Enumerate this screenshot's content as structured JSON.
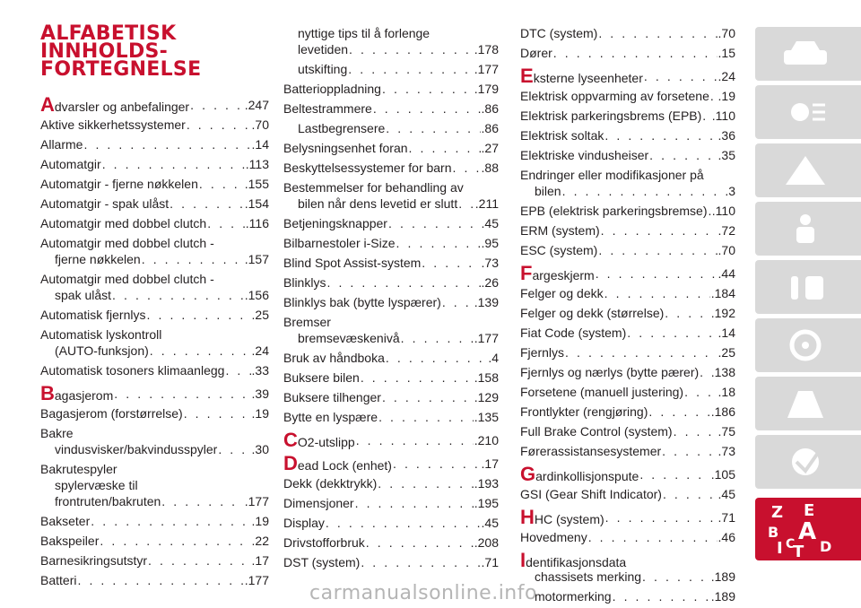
{
  "title": [
    "ALFABETISK",
    "INNHOLDS-",
    "FORTEGNELSE"
  ],
  "col1": [
    {
      "t": "Advarsler og anbefalinger",
      "p": ".247",
      "first": true
    },
    {
      "t": "Aktive sikkerhetssystemer",
      "p": ".70"
    },
    {
      "t": "Allarme",
      "p": ".14"
    },
    {
      "t": "Automatgir",
      "p": ".113"
    },
    {
      "t": "Automatgir - fjerne nøkkelen",
      "p": ".155"
    },
    {
      "t": "Automatgir - spak ulåst",
      "p": ".154"
    },
    {
      "t": "Automatgir med dobbel clutch",
      "p": ".116"
    },
    {
      "t": "Automatgir med dobbel clutch -",
      "plain": true
    },
    {
      "t": "fjerne nøkkelen",
      "p": ".157",
      "sub": true
    },
    {
      "t": "Automatgir med dobbel clutch -",
      "plain": true
    },
    {
      "t": "spak ulåst",
      "p": ".156",
      "sub": true
    },
    {
      "t": "Automatisk fjernlys",
      "p": ".25"
    },
    {
      "t": "Automatisk lyskontroll",
      "plain": true
    },
    {
      "t": "(AUTO-funksjon)",
      "p": ".24",
      "sub": true
    },
    {
      "t": "Automatisk tosoners klimaanlegg",
      "p": ".33"
    },
    {
      "t": "Bagasjerom",
      "p": ".39",
      "first": true
    },
    {
      "t": "Bagasjerom (forstørrelse)",
      "p": ".19"
    },
    {
      "t": "Bakre",
      "plain": true
    },
    {
      "t": "vindusvisker/bakvindusspyler",
      "p": ".30",
      "sub": true
    },
    {
      "t": "Bakrutespyler",
      "plain": true
    },
    {
      "t": "spylervæske til",
      "plain": true,
      "sub": true
    },
    {
      "t": "frontruten/bakruten",
      "p": ".177",
      "sub": true
    },
    {
      "t": "Bakseter",
      "p": ".19"
    },
    {
      "t": "Bakspeiler",
      "p": ".22"
    },
    {
      "t": "Barnesikringsutstyr",
      "p": ".17"
    },
    {
      "t": "Batteri",
      "p": ".177"
    }
  ],
  "col2": [
    {
      "t": "nyttige tips til å forlenge",
      "plain": true,
      "sub": true
    },
    {
      "t": "levetiden",
      "p": ".178",
      "sub": true
    },
    {
      "t": "utskifting",
      "p": ".177",
      "sub": true
    },
    {
      "t": "Batterioppladning",
      "p": ".179"
    },
    {
      "t": "Beltestrammere",
      "p": ".86"
    },
    {
      "t": "Lastbegrensere",
      "p": ".86",
      "sub": true
    },
    {
      "t": "Belysningsenhet foran",
      "p": ".27"
    },
    {
      "t": "Beskyttelsessystemer for barn",
      "p": ".88"
    },
    {
      "t": "Bestemmelser for behandling av",
      "plain": true
    },
    {
      "t": "bilen når dens levetid er slutt",
      "p": ".211",
      "sub": true
    },
    {
      "t": "Betjeningsknapper",
      "p": ".45"
    },
    {
      "t": "Bilbarnestoler i-Size",
      "p": ".95"
    },
    {
      "t": "Blind Spot Assist-system",
      "p": ".73"
    },
    {
      "t": "Blinklys",
      "p": ".26"
    },
    {
      "t": "Blinklys bak (bytte lyspærer)",
      "p": ".139"
    },
    {
      "t": "Bremser",
      "plain": true
    },
    {
      "t": "bremsevæskenivå",
      "p": ".177",
      "sub": true
    },
    {
      "t": "Bruk av håndboka",
      "p": ".4"
    },
    {
      "t": "Buksere bilen",
      "p": ".158"
    },
    {
      "t": "Buksere tilhenger",
      "p": ".129"
    },
    {
      "t": "Bytte en lyspære",
      "p": ".135"
    },
    {
      "t": "CO2-utslipp",
      "p": ".210",
      "first": true
    },
    {
      "t": "Dead Lock (enhet)",
      "p": ".17",
      "first": true
    },
    {
      "t": "Dekk (dekktrykk)",
      "p": ".193"
    },
    {
      "t": "Dimensjoner",
      "p": ".195"
    },
    {
      "t": "Display",
      "p": ".45"
    },
    {
      "t": "Drivstofforbruk",
      "p": ".208"
    },
    {
      "t": "DST (system)",
      "p": ".71"
    }
  ],
  "col3": [
    {
      "t": "DTC (system)",
      "p": ".70"
    },
    {
      "t": "Dører",
      "p": ".15"
    },
    {
      "t": "Eksterne lyseenheter",
      "p": ".24",
      "first": true
    },
    {
      "t": "Elektrisk oppvarming av forsetene",
      "p": ".19"
    },
    {
      "t": "Elektrisk parkeringsbrems (EPB)",
      "p": ".110"
    },
    {
      "t": "Elektrisk soltak",
      "p": ".36"
    },
    {
      "t": "Elektriske vindusheiser",
      "p": ".35"
    },
    {
      "t": "Endringer eller modifikasjoner på",
      "plain": true
    },
    {
      "t": "bilen",
      "p": ".3",
      "sub": true
    },
    {
      "t": "EPB (elektrisk parkeringsbremse)",
      "p": ".110"
    },
    {
      "t": "ERM (system)",
      "p": ".72"
    },
    {
      "t": "ESC (system)",
      "p": ".70"
    },
    {
      "t": "Fargeskjerm",
      "p": ".44",
      "first": true
    },
    {
      "t": "Felger og dekk",
      "p": ".184"
    },
    {
      "t": "Felger og dekk (størrelse)",
      "p": ".192"
    },
    {
      "t": "Fiat Code (system)",
      "p": ".14"
    },
    {
      "t": "Fjernlys",
      "p": ".25"
    },
    {
      "t": "Fjernlys og nærlys (bytte pærer)",
      "p": ".138"
    },
    {
      "t": "Forsetene (manuell justering)",
      "p": ".18"
    },
    {
      "t": "Frontlykter (rengjøring)",
      "p": ".186"
    },
    {
      "t": "Full Brake Control (system)",
      "p": ".75"
    },
    {
      "t": "Førerassistansesystemer",
      "p": ".73"
    },
    {
      "t": "Gardinkollisjonspute",
      "p": ".105",
      "first": true
    },
    {
      "t": "GSI (Gear Shift Indicator)",
      "p": ".45"
    },
    {
      "t": "HHC (system)",
      "p": ".71",
      "first": true
    },
    {
      "t": "Hovedmeny",
      "p": ".46"
    },
    {
      "t": "Identifikasjonsdata",
      "plain": true,
      "first": true
    },
    {
      "t": "chassisets merking",
      "p": ".189",
      "sub": true
    },
    {
      "t": "motormerking",
      "p": ".189",
      "sub": true
    }
  ],
  "sidebar": {
    "tabs": [
      "car-icon",
      "lights-icon",
      "warning-icon",
      "seatbelt-icon",
      "wrench-icon",
      "road-icon",
      "steering-wheel-icon",
      "tire-icon",
      "settings-icon",
      "index-icon"
    ],
    "index_letters": [
      "Z",
      "E",
      "B",
      "A",
      "C",
      "I",
      "T",
      "D"
    ]
  },
  "watermark": "carmanualsonline.info"
}
